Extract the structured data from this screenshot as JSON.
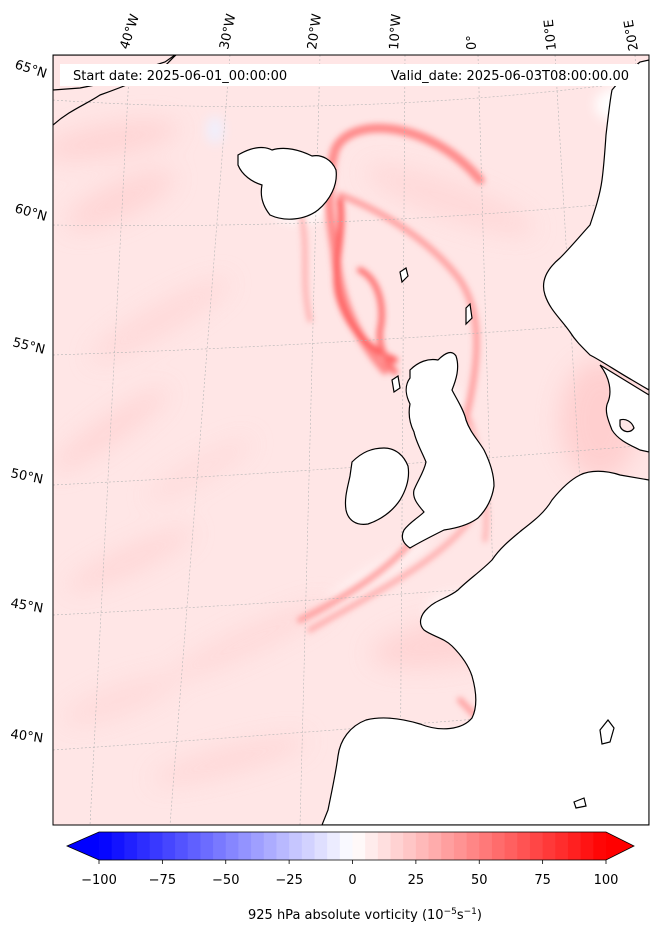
{
  "header": {
    "start_label": "Start date: 2025-06-01_00:00:00",
    "valid_label": "Valid_date: 2025-06-03T08:00:00.00"
  },
  "map": {
    "projection": "polar-stereographic (rotated)",
    "lon_labels": [
      "40°W",
      "30°W",
      "20°W",
      "10°W",
      "0°",
      "10°E",
      "20°E"
    ],
    "lat_labels": [
      "65°N",
      "60°N",
      "55°N",
      "50°N",
      "45°N",
      "40°N"
    ],
    "gridlines": true,
    "coastlines": true
  },
  "colorbar": {
    "ticks": [
      "−100",
      "−75",
      "−50",
      "−25",
      "0",
      "25",
      "50",
      "75",
      "100"
    ],
    "tick_values": [
      -100,
      -75,
      -50,
      -25,
      0,
      25,
      50,
      75,
      100
    ],
    "range": [
      -100,
      100
    ],
    "extend": "both",
    "cmap": "bwr",
    "low_color": "#0000ff",
    "mid_color": "#ffffff",
    "high_color": "#ff0000",
    "title_main": "925 hPa absolute vorticity (10",
    "title_exp1": "−5",
    "title_mid": "s",
    "title_exp2": "−1",
    "title_end": ")"
  }
}
